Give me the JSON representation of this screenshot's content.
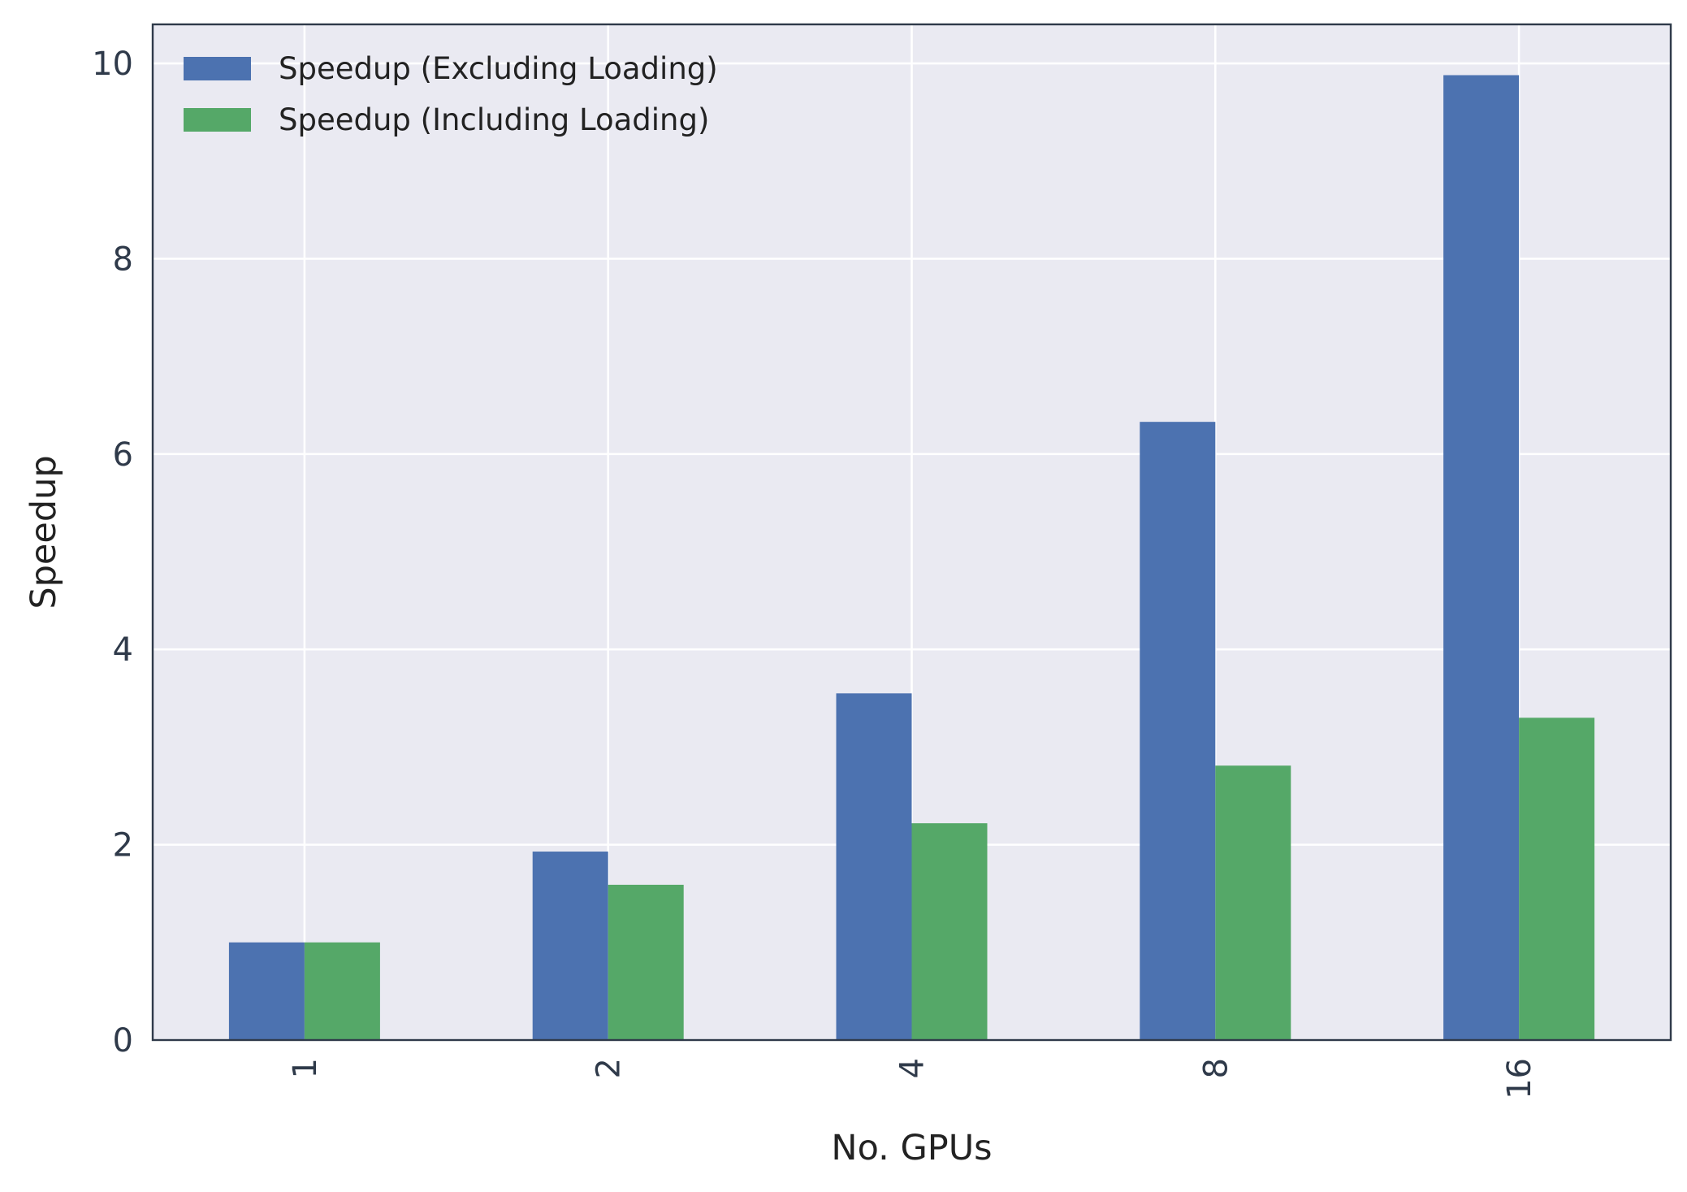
{
  "chart_data": {
    "type": "bar",
    "title": "",
    "xlabel": "No. GPUs",
    "ylabel": "Speedup",
    "categories": [
      "1",
      "2",
      "4",
      "8",
      "16"
    ],
    "series": [
      {
        "name": "Speedup (Excluding Loading)",
        "color": "#4c72b0",
        "values": [
          1.0,
          1.93,
          3.55,
          6.33,
          9.88
        ]
      },
      {
        "name": "Speedup (Including Loading)",
        "color": "#55a868",
        "values": [
          1.0,
          1.59,
          2.22,
          2.81,
          3.3
        ]
      }
    ],
    "ylim": [
      0,
      10.4
    ],
    "yticks": [
      "0",
      "2",
      "4",
      "6",
      "8",
      "10"
    ],
    "grid": true,
    "legend_position": "top-left",
    "background_color": "#eaeaf2",
    "axis_color": "#2f3a4a"
  }
}
